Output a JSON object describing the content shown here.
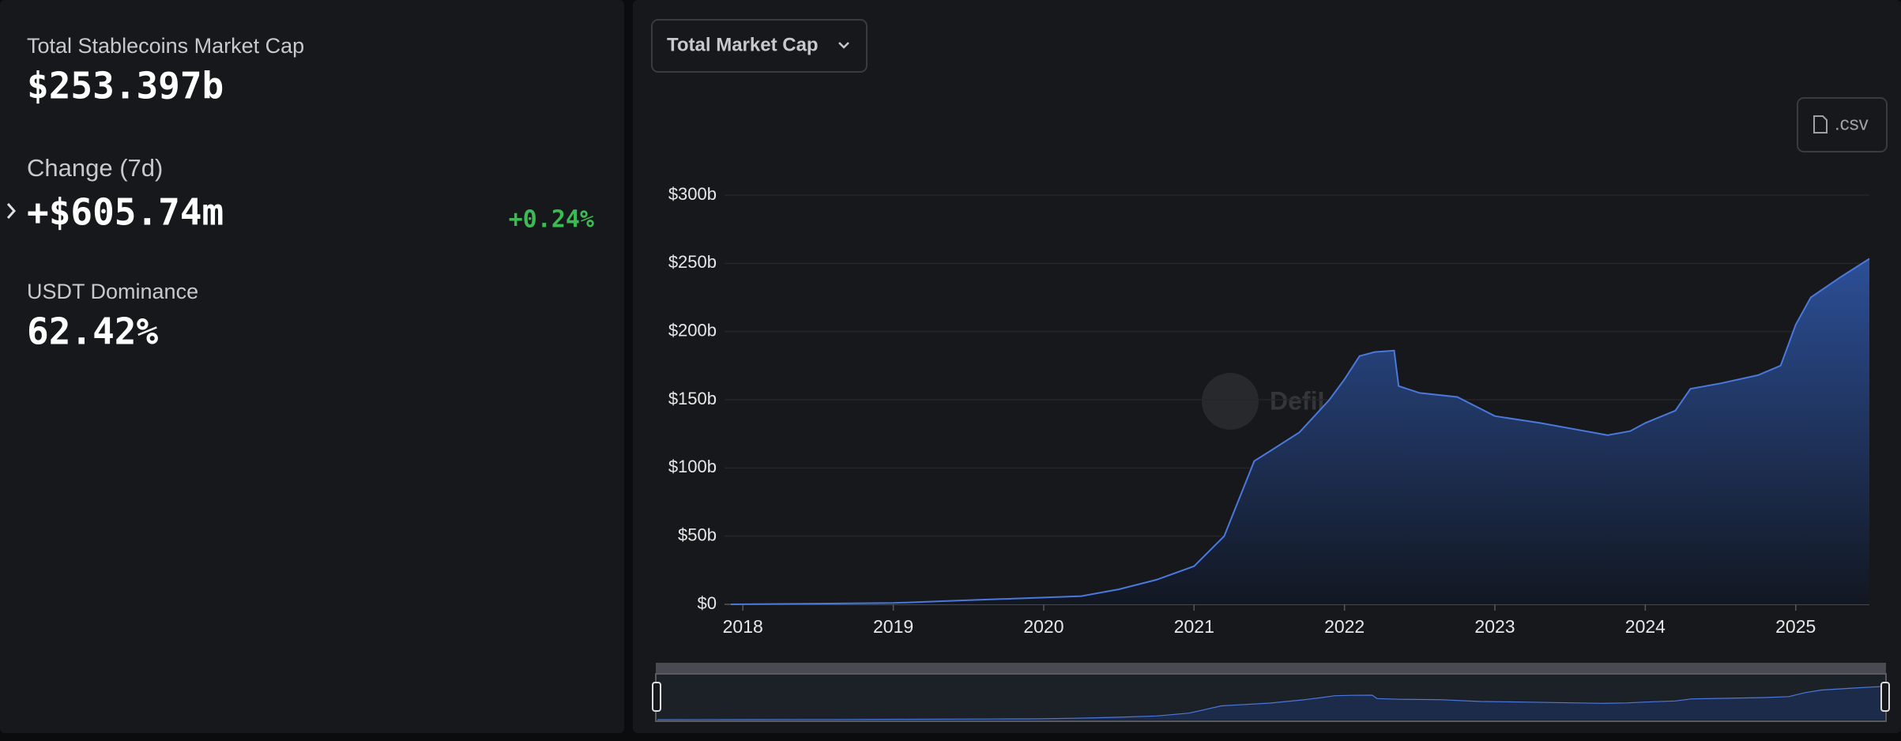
{
  "stats": [
    {
      "label": "Total Stablecoins Market Cap",
      "value": "$253.397b"
    },
    {
      "label": "Change (7d)",
      "value": "+$605.74m",
      "change": "+0.24%"
    },
    {
      "label": "USDT Dominance",
      "value": "62.42%"
    }
  ],
  "dropdown": "Total Market Cap",
  "csv_button": ".csv",
  "watermark": "DefiLlama",
  "chart_data": {
    "type": "area",
    "x": [
      2017.92,
      2018.5,
      2019.0,
      2019.5,
      2020.0,
      2020.25,
      2020.5,
      2020.75,
      2021.0,
      2021.2,
      2021.32,
      2021.4,
      2021.5,
      2021.7,
      2021.9,
      2022.0,
      2022.1,
      2022.2,
      2022.33,
      2022.36,
      2022.5,
      2022.75,
      2023.0,
      2023.3,
      2023.6,
      2023.75,
      2023.9,
      2024.0,
      2024.2,
      2024.3,
      2024.5,
      2024.75,
      2024.9,
      2025.0,
      2025.1,
      2025.3,
      2025.49
    ],
    "values": [
      0,
      0.5,
      1,
      3,
      5,
      6,
      11,
      18,
      28,
      50,
      83,
      105,
      112,
      126,
      150,
      165,
      182,
      185,
      186,
      160,
      155,
      152,
      138,
      133,
      127,
      124,
      127,
      133,
      142,
      158,
      162,
      168,
      175,
      205,
      225,
      240,
      253.4
    ],
    "color": "#4a78dc",
    "xlim": [
      2017.92,
      2025.49
    ],
    "xticks": [
      2018,
      2019,
      2020,
      2021,
      2022,
      2023,
      2024,
      2025
    ],
    "ylim": [
      0,
      300
    ],
    "yticks": [
      {
        "value": 0,
        "label": "$0"
      },
      {
        "value": 50,
        "label": "$50b"
      },
      {
        "value": 100,
        "label": "$100b"
      },
      {
        "value": 150,
        "label": "$150b"
      },
      {
        "value": 200,
        "label": "$200b"
      },
      {
        "value": 250,
        "label": "$250b"
      },
      {
        "value": 300,
        "label": "$300b"
      }
    ],
    "grid": true
  }
}
